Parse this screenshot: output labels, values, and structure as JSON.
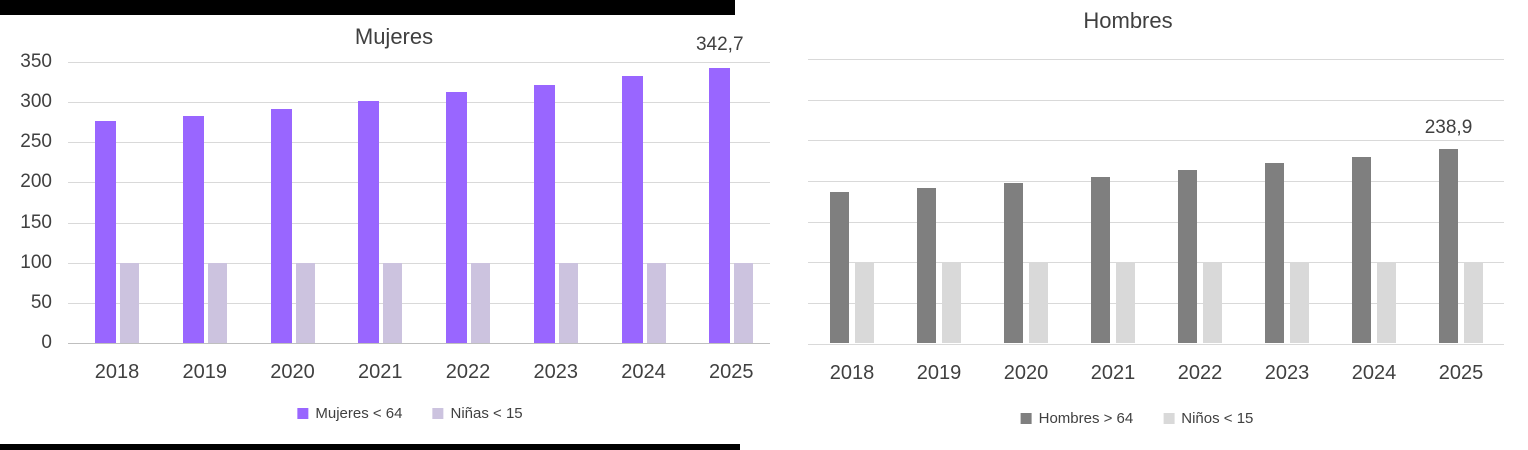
{
  "page": {
    "background": "#FFFFFF",
    "text_color": "#404040"
  },
  "decor": {
    "top_bar_color": "#000000",
    "bottom_bar_color": "#000000"
  },
  "chart_data": [
    {
      "id": "mujeres",
      "type": "bar",
      "title": "Mujeres",
      "categories": [
        "2018",
        "2019",
        "2020",
        "2021",
        "2022",
        "2023",
        "2024",
        "2025"
      ],
      "series": [
        {
          "name": "Mujeres < 64",
          "color": "#9966FF",
          "values": [
            277,
            283,
            291,
            301,
            313,
            321,
            332,
            342.7
          ]
        },
        {
          "name": "Niñas < 15",
          "color": "#CCC3DF",
          "values": [
            100,
            100,
            100,
            100,
            100,
            100,
            100,
            100
          ]
        }
      ],
      "ylim": [
        0,
        350
      ],
      "yticks": [
        0,
        50,
        100,
        150,
        200,
        250,
        300,
        350
      ],
      "yticks_visible": true,
      "grid": true,
      "legend_position": "bottom",
      "data_labels": [
        {
          "series_index": 0,
          "category_index": 7,
          "text": "342,7",
          "value": 342.7
        }
      ]
    },
    {
      "id": "hombres",
      "type": "bar",
      "title": "Hombres",
      "categories": [
        "2018",
        "2019",
        "2020",
        "2021",
        "2022",
        "2023",
        "2024",
        "2025"
      ],
      "series": [
        {
          "name": "Hombres > 64",
          "color": "#7F7F7F",
          "values": [
            186,
            191,
            197,
            205,
            214,
            222,
            230,
            238.9
          ]
        },
        {
          "name": "Niños < 15",
          "color": "#D9D9D9",
          "values": [
            100,
            100,
            100,
            100,
            100,
            100,
            100,
            100
          ]
        }
      ],
      "ylim": [
        0,
        350
      ],
      "yticks": [
        0,
        50,
        100,
        150,
        200,
        250,
        300,
        350
      ],
      "yticks_visible": false,
      "grid": true,
      "legend_position": "bottom",
      "data_labels": [
        {
          "series_index": 0,
          "category_index": 7,
          "text": "238,9",
          "value": 238.9
        }
      ]
    }
  ]
}
